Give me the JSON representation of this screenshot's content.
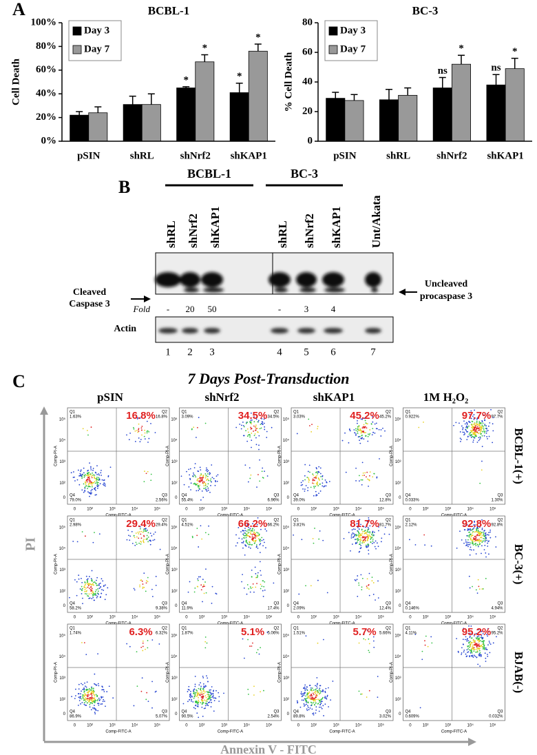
{
  "chart_data": [
    {
      "type": "bar",
      "title": "BCBL-1",
      "y_label": "Cell Death",
      "categories": [
        "pSIN",
        "shRL",
        "shNrf2",
        "shKAP1"
      ],
      "series": [
        {
          "name": "Day 3",
          "color": "#000000",
          "values": [
            22,
            31,
            45,
            41
          ],
          "errors": [
            3,
            7,
            1,
            8
          ],
          "annotations": [
            null,
            null,
            "*",
            "*"
          ]
        },
        {
          "name": "Day 7",
          "color": "#999999",
          "values": [
            24,
            31,
            67,
            76
          ],
          "errors": [
            5,
            9,
            6,
            6
          ],
          "annotations": [
            null,
            null,
            "*",
            "*"
          ]
        }
      ],
      "ylim": [
        0,
        100
      ],
      "yticks": [
        {
          "value": 0,
          "label": "0%"
        },
        {
          "value": 20,
          "label": "20%"
        },
        {
          "value": 40,
          "label": "40%"
        },
        {
          "value": 60,
          "label": "60%"
        },
        {
          "value": 80,
          "label": "80%"
        },
        {
          "value": 100,
          "label": "100%"
        }
      ],
      "legend": "upper-left"
    },
    {
      "type": "bar",
      "title": "BC-3",
      "y_label": "% Cell Death",
      "categories": [
        "pSIN",
        "shRL",
        "shNrf2",
        "shKAP1"
      ],
      "series": [
        {
          "name": "Day 3",
          "color": "#000000",
          "values": [
            29,
            28,
            36,
            38
          ],
          "errors": [
            4,
            7,
            7,
            7
          ],
          "annotations": [
            null,
            null,
            "ns",
            "ns"
          ]
        },
        {
          "name": "Day 7",
          "color": "#999999",
          "values": [
            27.5,
            31,
            52,
            49
          ],
          "errors": [
            4,
            5,
            6,
            7
          ],
          "annotations": [
            null,
            null,
            "*",
            "*"
          ]
        }
      ],
      "ylim": [
        0,
        80
      ],
      "yticks": [
        0,
        20,
        40,
        60,
        80
      ],
      "legend": "upper-left"
    }
  ],
  "panel_labels": [
    "A",
    "B",
    "C"
  ],
  "western_blot": {
    "groups": [
      "BCBL-1",
      "BC-3"
    ],
    "lanes": [
      "shRL",
      "shNrf2",
      "shKAP1",
      "shRL",
      "shNrf2",
      "shKAP1",
      "Unt/Akata"
    ],
    "cleaved_label": [
      "Cleaved",
      "Caspase 3"
    ],
    "uncleaved_label": [
      "Uncleaved",
      "procaspase 3"
    ],
    "fold_label": "Fold",
    "fold": [
      "-",
      20,
      50,
      "-",
      3,
      4
    ],
    "loading_label": "Actin",
    "lane_numbers": [
      1,
      2,
      3,
      4,
      5,
      6,
      7
    ]
  },
  "flow": {
    "title": "7 Days Post-Transduction",
    "columns": [
      "pSIN",
      "shNrf2",
      "shKAP1",
      "1M H₂O₂"
    ],
    "rows": [
      "BCBL-1(+)",
      "BC-3(+)",
      "BJAB(-)"
    ],
    "y_axis": "PI",
    "x_axis": "Annexin V - FITC",
    "plot_y_label": "Comp-PI-A",
    "plot_x_label": "Comp-FITC-A",
    "quadrant_names": [
      "Q1",
      "Q2",
      "Q3",
      "Q4"
    ],
    "ticks": [
      "0",
      "10²",
      "10³",
      "10⁴",
      "10⁵"
    ],
    "panels": [
      [
        {
          "highlight": "16.8%",
          "quadrants": [
            "1.63%",
            "16.8%",
            "2.56%",
            "79.0%"
          ]
        },
        {
          "highlight": "34.5%",
          "quadrants": [
            "3.09%",
            "34.5%",
            "6.96%",
            "55.4%"
          ]
        },
        {
          "highlight": "45.2%",
          "quadrants": [
            "3.03%",
            "45.2%",
            "12.8%",
            "39.0%"
          ]
        },
        {
          "highlight": "97.7%",
          "quadrants": [
            "0.922%",
            "97.7%",
            "1.30%",
            "0.033%"
          ]
        }
      ],
      [
        {
          "highlight": "29.4%",
          "quadrants": [
            "2.98%",
            "29.4%",
            "9.38%",
            "58.2%"
          ]
        },
        {
          "highlight": "66.2%",
          "quadrants": [
            "4.51%",
            "66.2%",
            "17.4%",
            "11.9%"
          ]
        },
        {
          "highlight": "81.7%",
          "quadrants": [
            "3.81%",
            "81.7%",
            "12.4%",
            "2.09%"
          ]
        },
        {
          "highlight": "92.8%",
          "quadrants": [
            "2.12%",
            "92.8%",
            "4.94%",
            "0.146%"
          ]
        }
      ],
      [
        {
          "highlight": "6.3%",
          "quadrants": [
            "1.74%",
            "6.32%",
            "5.07%",
            "86.9%"
          ]
        },
        {
          "highlight": "5.1%",
          "quadrants": [
            "1.87%",
            "5.06%",
            "2.54%",
            "90.5%"
          ]
        },
        {
          "highlight": "5.7%",
          "quadrants": [
            "1.51%",
            "5.66%",
            "3.02%",
            "89.8%"
          ]
        },
        {
          "highlight": "95.2%",
          "quadrants": [
            "4.11%",
            "95.2%",
            "0.032%",
            "0.609%"
          ]
        }
      ]
    ]
  }
}
